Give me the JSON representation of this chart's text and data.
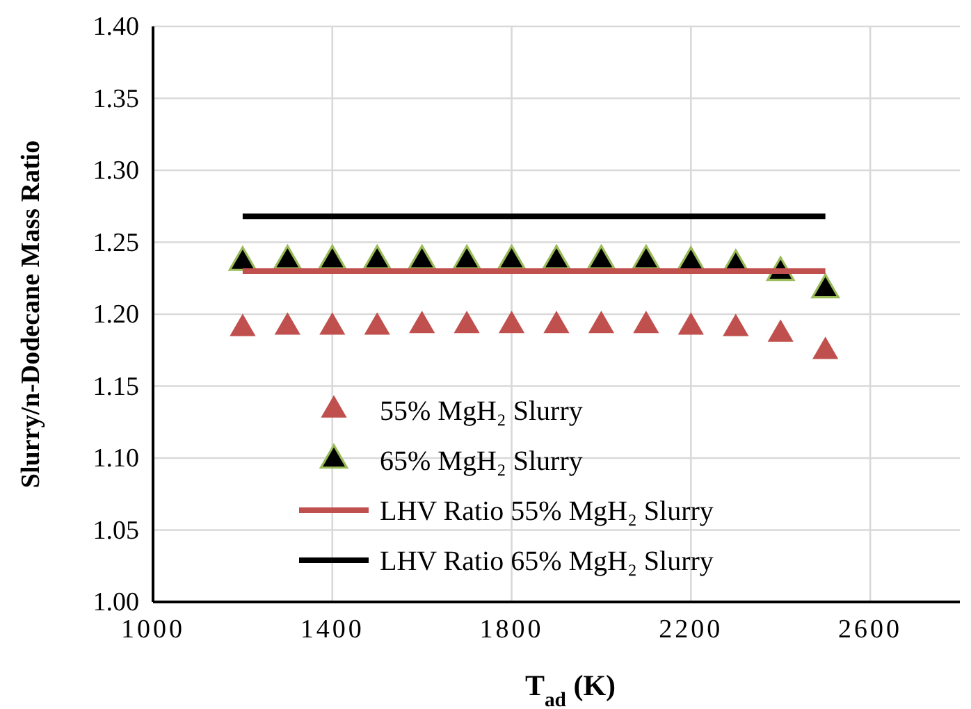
{
  "chart_data": {
    "type": "scatter",
    "xlabel": "T$_{ad}$ (K)",
    "ylabel": "Slurry/n-Dodecane Mass Ratio",
    "x": [
      1200,
      1300,
      1400,
      1500,
      1600,
      1700,
      1800,
      1900,
      2000,
      2100,
      2200,
      2300,
      2400,
      2500
    ],
    "series": [
      {
        "name": "55% MgH₂ Slurry",
        "marker": "triangle",
        "color": "#c0504d",
        "values": [
          1.19,
          1.191,
          1.191,
          1.191,
          1.192,
          1.192,
          1.192,
          1.192,
          1.192,
          1.192,
          1.191,
          1.19,
          1.186,
          1.174
        ]
      },
      {
        "name": "65% MgH₂ Slurry",
        "marker": "triangle",
        "color": "#000000",
        "values": [
          1.236,
          1.237,
          1.237,
          1.237,
          1.237,
          1.237,
          1.237,
          1.237,
          1.237,
          1.237,
          1.236,
          1.234,
          1.229,
          1.217
        ]
      },
      {
        "name": "LHV Ratio 55% MgH₂ Slurry",
        "type": "line",
        "color": "#c0504d",
        "values": [
          1.23,
          1.23,
          1.23,
          1.23,
          1.23,
          1.23,
          1.23,
          1.23,
          1.23,
          1.23,
          1.23,
          1.23,
          1.23,
          1.23
        ]
      },
      {
        "name": "LHV Ratio 65% MgH₂ Slurry",
        "type": "line",
        "color": "#000000",
        "values": [
          1.268,
          1.268,
          1.268,
          1.268,
          1.268,
          1.268,
          1.268,
          1.268,
          1.268,
          1.268,
          1.268,
          1.268,
          1.268,
          1.268
        ]
      }
    ],
    "xlim": [
      1000,
      2800
    ],
    "xticks": [
      1000,
      1400,
      1800,
      2200,
      2600
    ],
    "ylim": [
      1.0,
      1.4
    ],
    "yticks": [
      {
        "value": 1.0,
        "label": "1.00"
      },
      {
        "value": 1.05,
        "label": "1.05"
      },
      {
        "value": 1.1,
        "label": "1.10"
      },
      {
        "value": 1.15,
        "label": "1.15"
      },
      {
        "value": 1.2,
        "label": "1.20"
      },
      {
        "value": 1.25,
        "label": "1.25"
      },
      {
        "value": 1.3,
        "label": "1.30"
      },
      {
        "value": 1.35,
        "label": "1.35"
      },
      {
        "value": 1.4,
        "label": "1.40"
      }
    ],
    "grid": true,
    "legend": "bottom"
  }
}
